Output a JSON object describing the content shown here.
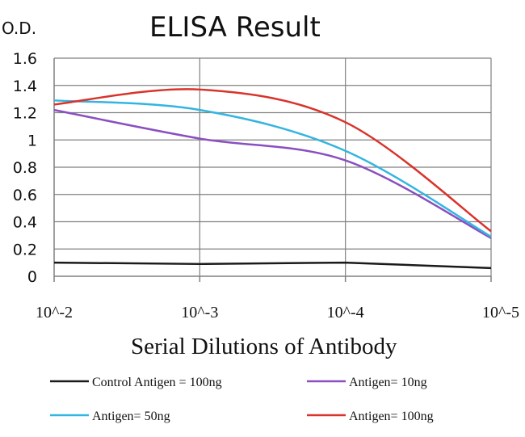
{
  "chart_data": {
    "type": "line",
    "title": "ELISA Result",
    "ylabel": "O.D.",
    "xlabel": "Serial Dilutions of Antibody",
    "categories": [
      "10^-2",
      "10^-3",
      "10^-4",
      "10^-5"
    ],
    "yticks": [
      "0",
      "0.2",
      "0.4",
      "0.6",
      "0.8",
      "1",
      "1.2",
      "1.4",
      "1.6"
    ],
    "ylim": [
      0,
      1.6
    ],
    "grid": true,
    "legend_position": "bottom",
    "series": [
      {
        "name": "Control Antigen = 100ng",
        "color": "#1a1a1a",
        "values": [
          0.1,
          0.09,
          0.1,
          0.06
        ]
      },
      {
        "name": "Antigen= 10ng",
        "color": "#8a4fc0",
        "values": [
          1.22,
          1.01,
          0.85,
          0.28
        ]
      },
      {
        "name": "Antigen= 50ng",
        "color": "#33b5e0",
        "values": [
          1.29,
          1.22,
          0.92,
          0.29
        ]
      },
      {
        "name": "Antigen= 100ng",
        "color": "#d9332b",
        "values": [
          1.26,
          1.37,
          1.13,
          0.33
        ]
      }
    ]
  }
}
